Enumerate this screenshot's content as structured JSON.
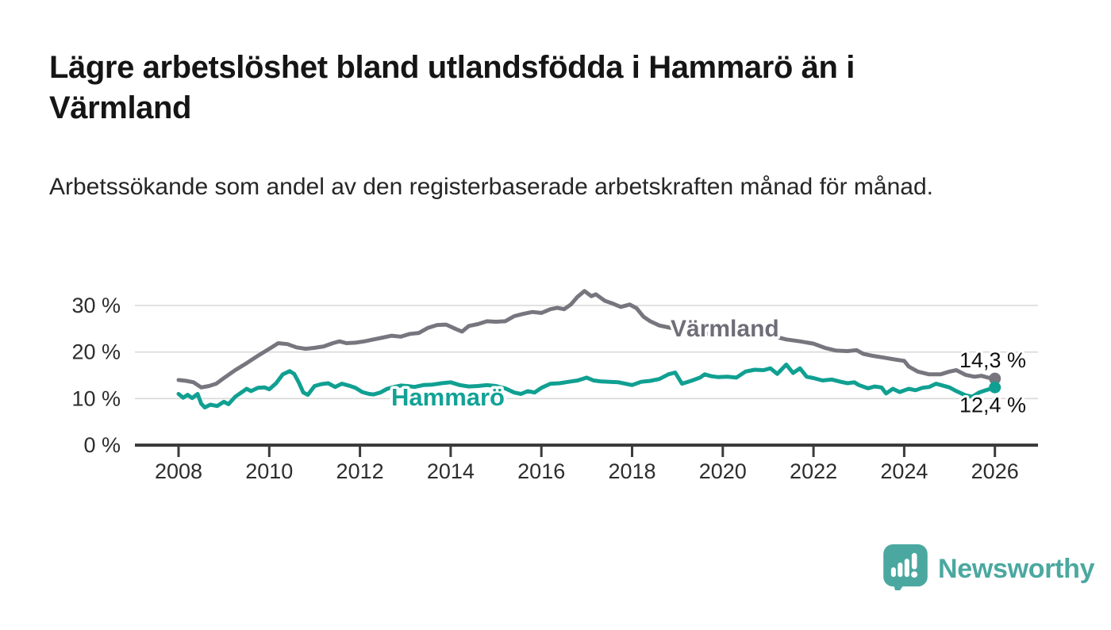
{
  "header": {
    "title": "Lägre arbetslöshet bland utlandsfödda i Hammarö än i Värmland",
    "subtitle": "Arbetssökande som andel av den registerbaserade arbetskraften månad för månad."
  },
  "chart_data": {
    "type": "line",
    "unit": "percent",
    "grid": "horizontal-only",
    "legend_position": "inline-labels-on-lines",
    "colors": {
      "grid_color": "#d9d9d9",
      "axis_color": "#3b3b3b",
      "tick_label_color": "#2d2d2d",
      "end_label_color": "#111111"
    },
    "x_axis": {
      "range_years": [
        2007.05,
        2026.95
      ],
      "ticks": [
        {
          "value": 2008,
          "label": "2008"
        },
        {
          "value": 2010,
          "label": "2010"
        },
        {
          "value": 2012,
          "label": "2012"
        },
        {
          "value": 2014,
          "label": "2014"
        },
        {
          "value": 2016,
          "label": "2016"
        },
        {
          "value": 2018,
          "label": "2018"
        },
        {
          "value": 2020,
          "label": "2020"
        },
        {
          "value": 2022,
          "label": "2022"
        },
        {
          "value": 2024,
          "label": "2024"
        },
        {
          "value": 2026,
          "label": "2026"
        }
      ]
    },
    "y_axis": {
      "range": [
        0,
        35
      ],
      "ticks": [
        {
          "value": 0,
          "label": "0 %"
        },
        {
          "value": 10,
          "label": "10 %"
        },
        {
          "value": 20,
          "label": "20 %"
        },
        {
          "value": 30,
          "label": "30 %"
        }
      ]
    },
    "series": [
      {
        "name": "Värmland",
        "color": "#77767e",
        "label_color": "#6f6e78",
        "end_label": "14,3 %",
        "end_value": 14.3,
        "points": [
          [
            2008.0,
            14.0
          ],
          [
            2008.17,
            13.8
          ],
          [
            2008.33,
            13.5
          ],
          [
            2008.5,
            12.4
          ],
          [
            2008.67,
            12.7
          ],
          [
            2008.83,
            13.2
          ],
          [
            2009.0,
            14.4
          ],
          [
            2009.25,
            16.1
          ],
          [
            2009.5,
            17.6
          ],
          [
            2009.75,
            19.2
          ],
          [
            2010.0,
            20.7
          ],
          [
            2010.2,
            21.9
          ],
          [
            2010.4,
            21.7
          ],
          [
            2010.6,
            21.0
          ],
          [
            2010.8,
            20.7
          ],
          [
            2011.0,
            20.9
          ],
          [
            2011.2,
            21.2
          ],
          [
            2011.4,
            21.9
          ],
          [
            2011.55,
            22.3
          ],
          [
            2011.7,
            21.9
          ],
          [
            2011.9,
            22.0
          ],
          [
            2012.1,
            22.3
          ],
          [
            2012.3,
            22.7
          ],
          [
            2012.5,
            23.1
          ],
          [
            2012.7,
            23.5
          ],
          [
            2012.9,
            23.3
          ],
          [
            2013.1,
            23.9
          ],
          [
            2013.3,
            24.1
          ],
          [
            2013.5,
            25.2
          ],
          [
            2013.7,
            25.8
          ],
          [
            2013.9,
            25.9
          ],
          [
            2014.1,
            25.0
          ],
          [
            2014.25,
            24.4
          ],
          [
            2014.4,
            25.6
          ],
          [
            2014.6,
            26.0
          ],
          [
            2014.8,
            26.6
          ],
          [
            2015.0,
            26.5
          ],
          [
            2015.2,
            26.6
          ],
          [
            2015.4,
            27.7
          ],
          [
            2015.6,
            28.2
          ],
          [
            2015.8,
            28.6
          ],
          [
            2016.0,
            28.4
          ],
          [
            2016.2,
            29.2
          ],
          [
            2016.35,
            29.5
          ],
          [
            2016.5,
            29.2
          ],
          [
            2016.65,
            30.2
          ],
          [
            2016.8,
            31.9
          ],
          [
            2016.95,
            33.1
          ],
          [
            2017.1,
            32.0
          ],
          [
            2017.2,
            32.4
          ],
          [
            2017.4,
            31.0
          ],
          [
            2017.55,
            30.5
          ],
          [
            2017.75,
            29.7
          ],
          [
            2017.95,
            30.2
          ],
          [
            2018.1,
            29.4
          ],
          [
            2018.25,
            27.6
          ],
          [
            2018.4,
            26.6
          ],
          [
            2018.6,
            25.7
          ],
          [
            2018.75,
            25.4
          ],
          [
            2019.0,
            24.9
          ],
          [
            2019.25,
            24.5
          ],
          [
            2019.5,
            24.1
          ],
          [
            2019.75,
            23.9
          ],
          [
            2020.0,
            24.3
          ],
          [
            2020.25,
            25.2
          ],
          [
            2020.5,
            25.5
          ],
          [
            2020.75,
            24.9
          ],
          [
            2021.0,
            23.9
          ],
          [
            2021.2,
            23.2
          ],
          [
            2021.4,
            22.7
          ],
          [
            2021.7,
            22.3
          ],
          [
            2022.0,
            21.8
          ],
          [
            2022.25,
            20.9
          ],
          [
            2022.5,
            20.3
          ],
          [
            2022.75,
            20.2
          ],
          [
            2022.95,
            20.4
          ],
          [
            2023.1,
            19.6
          ],
          [
            2023.3,
            19.2
          ],
          [
            2023.55,
            18.8
          ],
          [
            2023.8,
            18.4
          ],
          [
            2024.0,
            18.1
          ],
          [
            2024.1,
            16.9
          ],
          [
            2024.3,
            15.8
          ],
          [
            2024.55,
            15.2
          ],
          [
            2024.8,
            15.2
          ],
          [
            2025.0,
            15.8
          ],
          [
            2025.15,
            16.1
          ],
          [
            2025.35,
            15.1
          ],
          [
            2025.55,
            14.7
          ],
          [
            2025.7,
            14.9
          ],
          [
            2025.85,
            14.5
          ],
          [
            2026.0,
            14.3
          ]
        ]
      },
      {
        "name": "Hammarö",
        "color": "#10A092",
        "label_color": "#12a296",
        "end_label": "12,4 %",
        "end_value": 12.4,
        "points": [
          [
            2008.0,
            11.0
          ],
          [
            2008.1,
            10.2
          ],
          [
            2008.2,
            10.8
          ],
          [
            2008.3,
            10.1
          ],
          [
            2008.42,
            11.0
          ],
          [
            2008.5,
            8.9
          ],
          [
            2008.58,
            8.1
          ],
          [
            2008.7,
            8.7
          ],
          [
            2008.85,
            8.4
          ],
          [
            2009.0,
            9.3
          ],
          [
            2009.1,
            8.8
          ],
          [
            2009.25,
            10.4
          ],
          [
            2009.4,
            11.4
          ],
          [
            2009.5,
            12.1
          ],
          [
            2009.6,
            11.6
          ],
          [
            2009.75,
            12.3
          ],
          [
            2009.9,
            12.4
          ],
          [
            2010.0,
            12.0
          ],
          [
            2010.15,
            13.3
          ],
          [
            2010.3,
            15.2
          ],
          [
            2010.45,
            15.9
          ],
          [
            2010.55,
            15.3
          ],
          [
            2010.65,
            13.5
          ],
          [
            2010.75,
            11.3
          ],
          [
            2010.85,
            10.8
          ],
          [
            2011.0,
            12.7
          ],
          [
            2011.15,
            13.1
          ],
          [
            2011.3,
            13.3
          ],
          [
            2011.45,
            12.5
          ],
          [
            2011.6,
            13.2
          ],
          [
            2011.75,
            12.8
          ],
          [
            2011.9,
            12.3
          ],
          [
            2012.05,
            11.4
          ],
          [
            2012.2,
            11.0
          ],
          [
            2012.3,
            10.9
          ],
          [
            2012.45,
            11.3
          ],
          [
            2012.6,
            12.1
          ],
          [
            2012.75,
            12.5
          ],
          [
            2012.9,
            12.8
          ],
          [
            2013.05,
            12.7
          ],
          [
            2013.2,
            12.5
          ],
          [
            2013.4,
            12.9
          ],
          [
            2013.6,
            13.0
          ],
          [
            2013.8,
            13.3
          ],
          [
            2014.0,
            13.5
          ],
          [
            2014.2,
            12.9
          ],
          [
            2014.4,
            12.6
          ],
          [
            2014.6,
            12.7
          ],
          [
            2014.8,
            12.9
          ],
          [
            2015.0,
            12.7
          ],
          [
            2015.2,
            12.2
          ],
          [
            2015.4,
            11.3
          ],
          [
            2015.55,
            11.0
          ],
          [
            2015.7,
            11.6
          ],
          [
            2015.85,
            11.3
          ],
          [
            2016.0,
            12.3
          ],
          [
            2016.2,
            13.2
          ],
          [
            2016.4,
            13.3
          ],
          [
            2016.6,
            13.6
          ],
          [
            2016.8,
            13.9
          ],
          [
            2017.0,
            14.5
          ],
          [
            2017.15,
            13.9
          ],
          [
            2017.3,
            13.7
          ],
          [
            2017.5,
            13.6
          ],
          [
            2017.7,
            13.5
          ],
          [
            2017.85,
            13.2
          ],
          [
            2018.0,
            12.9
          ],
          [
            2018.2,
            13.6
          ],
          [
            2018.4,
            13.8
          ],
          [
            2018.6,
            14.2
          ],
          [
            2018.8,
            15.2
          ],
          [
            2018.95,
            15.6
          ],
          [
            2019.1,
            13.2
          ],
          [
            2019.3,
            13.8
          ],
          [
            2019.5,
            14.5
          ],
          [
            2019.6,
            15.2
          ],
          [
            2019.75,
            14.8
          ],
          [
            2019.9,
            14.6
          ],
          [
            2020.1,
            14.7
          ],
          [
            2020.3,
            14.5
          ],
          [
            2020.5,
            15.8
          ],
          [
            2020.7,
            16.2
          ],
          [
            2020.9,
            16.1
          ],
          [
            2021.05,
            16.5
          ],
          [
            2021.2,
            15.3
          ],
          [
            2021.4,
            17.3
          ],
          [
            2021.55,
            15.5
          ],
          [
            2021.7,
            16.5
          ],
          [
            2021.85,
            14.7
          ],
          [
            2022.0,
            14.4
          ],
          [
            2022.2,
            13.9
          ],
          [
            2022.4,
            14.1
          ],
          [
            2022.6,
            13.6
          ],
          [
            2022.75,
            13.3
          ],
          [
            2022.9,
            13.5
          ],
          [
            2023.0,
            12.9
          ],
          [
            2023.2,
            12.2
          ],
          [
            2023.35,
            12.6
          ],
          [
            2023.5,
            12.4
          ],
          [
            2023.6,
            11.1
          ],
          [
            2023.75,
            12.1
          ],
          [
            2023.9,
            11.4
          ],
          [
            2024.1,
            12.1
          ],
          [
            2024.25,
            11.8
          ],
          [
            2024.4,
            12.3
          ],
          [
            2024.55,
            12.5
          ],
          [
            2024.7,
            13.2
          ],
          [
            2024.85,
            12.8
          ],
          [
            2025.0,
            12.4
          ],
          [
            2025.15,
            11.6
          ],
          [
            2025.35,
            10.7
          ],
          [
            2025.5,
            10.4
          ],
          [
            2025.65,
            11.3
          ],
          [
            2025.8,
            11.8
          ],
          [
            2026.0,
            12.4
          ]
        ]
      }
    ]
  },
  "footer": {
    "brand": "Newsworthy",
    "brand_color": "#4BA8A0",
    "logo_icon": "speech-bubble-bar-chart"
  }
}
